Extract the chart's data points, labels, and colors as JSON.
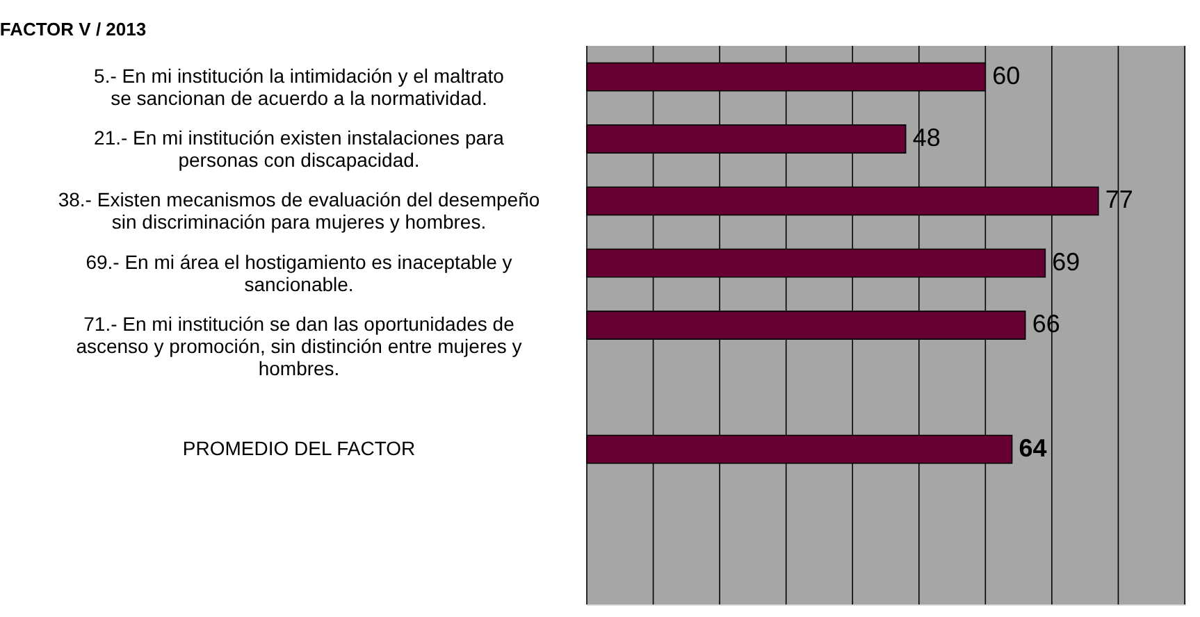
{
  "chart_data": {
    "type": "bar",
    "orientation": "horizontal",
    "title": "FACTOR V / 2013",
    "categories": [
      "5.- En mi institución la intimidación y el maltrato se sancionan de acuerdo a la normatividad.",
      "21.- En mi institución existen instalaciones para personas con discapacidad.",
      "38.- Existen mecanismos de evaluación del desempeño sin discriminación para mujeres y hombres.",
      "69.- En mi área el hostigamiento es inaceptable y sancionable.",
      "71.- En mi institución se dan las oportunidades de ascenso y promoción, sin distinción entre mujeres y hombres.",
      null,
      "PROMEDIO DEL FACTOR",
      null,
      null
    ],
    "values": [
      60,
      48,
      77,
      69,
      66,
      null,
      64,
      null,
      null
    ],
    "color": "#660033",
    "data_labels": true,
    "xlim": [
      0,
      90
    ],
    "xticks": [
      {
        "value": 0,
        "label": null
      },
      {
        "value": 10,
        "label": null
      },
      {
        "value": 20,
        "label": null
      },
      {
        "value": 30,
        "label": null
      },
      {
        "value": 40,
        "label": null
      },
      {
        "value": 50,
        "label": null
      },
      {
        "value": 60,
        "label": null
      },
      {
        "value": 70,
        "label": null
      },
      {
        "value": 80,
        "label": null
      },
      {
        "value": 90,
        "label": null
      }
    ],
    "tick_labels": false,
    "grid": "x"
  }
}
